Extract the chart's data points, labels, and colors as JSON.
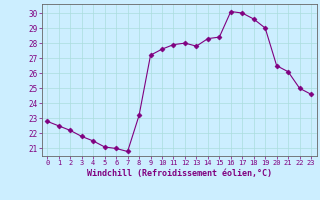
{
  "x": [
    0,
    1,
    2,
    3,
    4,
    5,
    6,
    7,
    8,
    9,
    10,
    11,
    12,
    13,
    14,
    15,
    16,
    17,
    18,
    19,
    20,
    21,
    22,
    23
  ],
  "y": [
    22.8,
    22.5,
    22.2,
    21.8,
    21.5,
    21.1,
    21.0,
    20.8,
    23.2,
    27.2,
    27.6,
    27.9,
    28.0,
    27.8,
    28.3,
    28.4,
    30.1,
    30.0,
    29.6,
    29.0,
    26.5,
    26.1,
    25.0,
    24.6
  ],
  "line_color": "#800080",
  "marker": "D",
  "marker_size": 2.5,
  "bg_color": "#cceeff",
  "grid_color": "#aadddd",
  "spine_color": "#555555",
  "tick_color": "#800080",
  "xlabel": "Windchill (Refroidissement éolien,°C)",
  "xlabel_fontsize": 6.0,
  "ylabel_ticks": [
    21,
    22,
    23,
    24,
    25,
    26,
    27,
    28,
    29,
    30
  ],
  "xticks": [
    0,
    1,
    2,
    3,
    4,
    5,
    6,
    7,
    8,
    9,
    10,
    11,
    12,
    13,
    14,
    15,
    16,
    17,
    18,
    19,
    20,
    21,
    22,
    23
  ],
  "ylim": [
    20.5,
    30.6
  ],
  "xlim": [
    -0.5,
    23.5
  ]
}
